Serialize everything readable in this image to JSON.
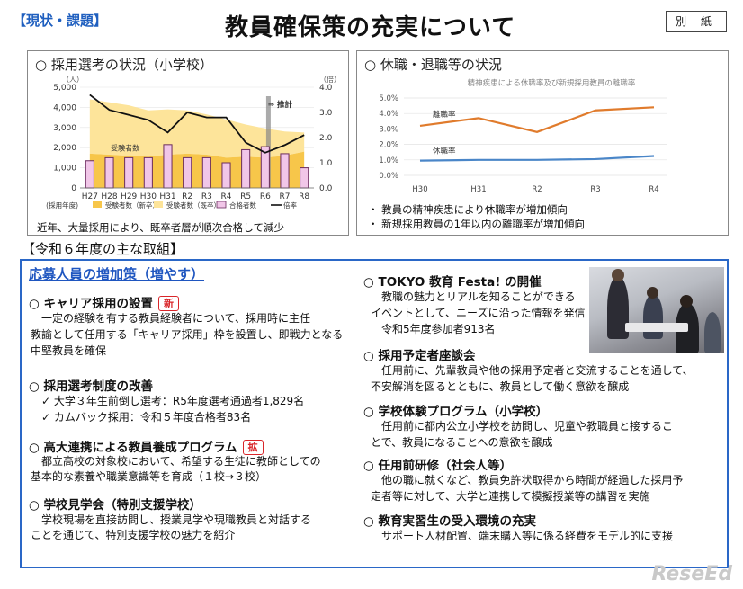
{
  "header": {
    "tag": "【現状・課題】",
    "title": "教員確保策の充実について",
    "annex": "別 紙"
  },
  "left_panel": {
    "title": "○ 採用選考の状況（小学校）",
    "caption": "近年、大量採用により、既卒者層が順次合格して減少",
    "y_left_unit": "（人）",
    "y_right_unit": "（倍）",
    "y_left_ticks": [
      "5,000",
      "4,000",
      "3,000",
      "2,000",
      "1,000",
      "0"
    ],
    "y_right_ticks": [
      "4.0",
      "3.0",
      "2.0",
      "1.0",
      "0.0"
    ],
    "x_prefix": "(採用年度)",
    "inner_label": "受験者数",
    "forecast_label": "⇒ 推計",
    "legend": [
      "受験者数（新卒）",
      "受験者数（既卒）",
      "合格者数",
      "倍率"
    ]
  },
  "right_panel": {
    "title": "○ 休職・退職等の状況",
    "chart_title": "精神疾患による休職率及び新規採用教員の離職率",
    "bullets": [
      "・ 教員の精神疾患により休職率が増加傾向",
      "・ 新規採用教員の1年以内の離職率が増加傾向"
    ]
  },
  "section_heading": "【令和６年度の主な取組】",
  "left_col": {
    "heading": "応募人員の増加策（増やす）",
    "items": [
      {
        "title": "○ キャリア採用の設置",
        "badge": "新",
        "lines": [
          "一定の経験を有する教員経験者について、採用時に主任",
          "教諭として任用する「キャリア採用」枠を設置し、即戦力となる",
          "中堅教員を確保"
        ]
      },
      {
        "title": "○ 採用選考制度の改善",
        "lines": [
          "✓ 大学３年生前倒し選考：R5年度選考通過者1,829名",
          "✓ カムバック採用：令和５年度合格者83名"
        ]
      },
      {
        "title": "○ 高大連携による教員養成プログラム",
        "badge": "拡",
        "lines": [
          "都立高校の対象校において、希望する生徒に教師としての",
          "基本的な素養や職業意識等を育成（１校→３校）"
        ]
      },
      {
        "title": "○ 学校見学会（特別支援学校）",
        "lines": [
          "学校現場を直接訪問し、授業見学や現職教員と対話する",
          "ことを通じて、特別支援学校の魅力を紹介"
        ]
      }
    ]
  },
  "right_col": {
    "items": [
      {
        "title": "○ TOKYO 教育 Festa! の開催",
        "lines": [
          "教職の魅力とリアルを知ることができる",
          "イベントとして、ニーズに沿った情報を発信",
          "令和5年度参加者913名"
        ]
      },
      {
        "title": "○ 採用予定者座談会",
        "lines": [
          "任用前に、先輩教員や他の採用予定者と交流することを通して、",
          "不安解消を図るとともに、教員として働く意欲を醸成"
        ]
      },
      {
        "title": "○ 学校体験プログラム（小学校）",
        "lines": [
          "任用前に都内公立小学校を訪問し、児童や教職員と接するこ",
          "とで、教員になることへの意欲を醸成"
        ]
      },
      {
        "title": "○ 任用前研修（社会人等）",
        "lines": [
          "他の職に就くなど、教員免許状取得から時間が経過した採用予",
          "定者等に対して、大学と連携して模擬授業等の講習を実施"
        ]
      },
      {
        "title": "○ 教育実習生の受入環境の充実",
        "lines": [
          "サポート人材配置、端末購入等に係る経費をモデル的に支援"
        ]
      }
    ]
  },
  "watermark": "ReseEd",
  "chart_data": [
    {
      "type": "bar+area+line",
      "title": "採用選考の状況（小学校）",
      "categories": [
        "H27",
        "H28",
        "H29",
        "H30",
        "H31",
        "R2",
        "R3",
        "R4",
        "R5",
        "R6",
        "R7",
        "R8"
      ],
      "ylim_left": [
        0,
        5000
      ],
      "ylim_right": [
        0,
        4.0
      ],
      "series": [
        {
          "name": "受験者数（新卒）",
          "type": "area",
          "values": [
            1700,
            1650,
            1600,
            1550,
            1650,
            1700,
            1650,
            1500,
            1550,
            1500,
            1600,
            1800
          ]
        },
        {
          "name": "受験者数（既卒）",
          "type": "area",
          "values": [
            2700,
            2600,
            2500,
            2300,
            2250,
            2150,
            2000,
            1900,
            1600,
            1450,
            1200,
            950
          ]
        },
        {
          "name": "合格者数",
          "type": "bar",
          "values": [
            1350,
            1500,
            1500,
            1500,
            2150,
            1500,
            1500,
            1250,
            1900,
            2050,
            1700,
            1000
          ]
        },
        {
          "name": "倍率",
          "type": "line",
          "axis": "right",
          "values": [
            3.7,
            3.1,
            2.9,
            2.7,
            2.2,
            3.0,
            2.8,
            2.8,
            1.8,
            1.4,
            1.7,
            2.1
          ]
        }
      ],
      "forecast_from": "R6"
    },
    {
      "type": "line",
      "title": "精神疾患による休職率及び新規採用教員の離職率",
      "categories": [
        "H30",
        "H31",
        "R2",
        "R3",
        "R4"
      ],
      "ylim": [
        0,
        5.0
      ],
      "y_ticks": [
        "5.0%",
        "4.0%",
        "3.0%",
        "2.0%",
        "1.0%",
        "0.0%"
      ],
      "series": [
        {
          "name": "離職率",
          "color": "#e07b2c",
          "values": [
            3.2,
            3.7,
            2.8,
            4.2,
            4.4
          ]
        },
        {
          "name": "休職率",
          "color": "#4a86c8",
          "values": [
            0.95,
            1.0,
            1.0,
            1.05,
            1.25
          ]
        }
      ]
    }
  ]
}
